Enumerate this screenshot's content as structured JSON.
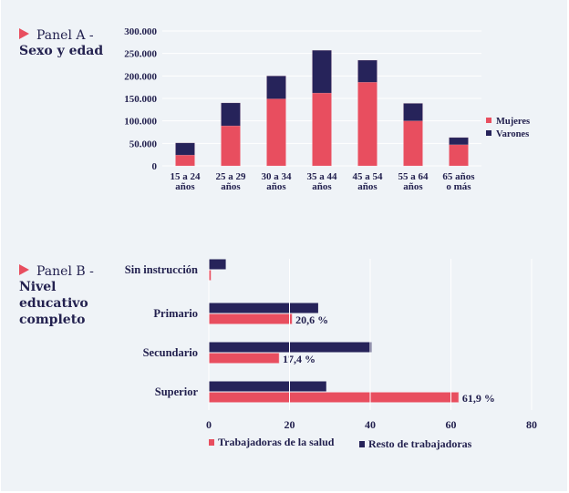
{
  "colors": {
    "mujeres": "#e84e5f",
    "varones": "#26235a",
    "background": "#eff3f7",
    "text": "#23214f",
    "grid": "#ffffff"
  },
  "chart_data": [
    {
      "type": "bar",
      "stacked": true,
      "orientation": "vertical",
      "panel_label": "Panel A -",
      "title": "Sexo y edad",
      "categories": [
        "15 a 24|años",
        "25 a 29|años",
        "30 a 34|años",
        "35 a 44|años",
        "45 a 54|años",
        "55 a 64|años",
        "65 años|o más"
      ],
      "series": [
        {
          "name": "Mujeres",
          "color": "#e84e5f",
          "values": [
            24000,
            89000,
            149000,
            162000,
            186000,
            100000,
            47000
          ]
        },
        {
          "name": "Varones",
          "color": "#26235a",
          "values": [
            27000,
            51000,
            51000,
            95000,
            49000,
            39000,
            16000
          ]
        }
      ],
      "yticks": [
        "0",
        "50.000",
        "100.000",
        "150.000",
        "200.000",
        "250.000",
        "300.000"
      ],
      "ytick_values": [
        0,
        50000,
        100000,
        150000,
        200000,
        250000,
        300000
      ],
      "ylim": [
        0,
        300000
      ],
      "xlabel": "",
      "ylabel": "",
      "grid": true,
      "legend": {
        "position": "right",
        "entries": [
          "Mujeres",
          "Varones"
        ]
      }
    },
    {
      "type": "bar",
      "orientation": "horizontal",
      "panel_label": "Panel B -",
      "title": "Nivel educativo completo",
      "title_lines": [
        "Nivel",
        "educativo",
        "completo"
      ],
      "categories": [
        "Sin instrucción",
        "Primario",
        "Secundario",
        "Superior"
      ],
      "series": [
        {
          "name": "Resto de trabajadoras",
          "color": "#26235a",
          "values": [
            4.2,
            27.1,
            40.3,
            29.1
          ]
        },
        {
          "name": "Trabajadoras de la salud",
          "color": "#e84e5f",
          "values": [
            0.5,
            20.6,
            17.4,
            61.9
          ]
        }
      ],
      "data_labels": [
        "",
        "20,6 %",
        "17,4 %",
        "61,9 %"
      ],
      "xticks": [
        "0",
        "20",
        "40",
        "60",
        "80"
      ],
      "xtick_values": [
        0,
        20,
        40,
        60,
        80
      ],
      "xlim": [
        0,
        80
      ],
      "xlabel": "",
      "ylabel": "",
      "grid": true,
      "legend": {
        "position": "bottom",
        "entries": [
          "Trabajadoras de la salud",
          "Resto de trabajadoras"
        ]
      }
    }
  ]
}
